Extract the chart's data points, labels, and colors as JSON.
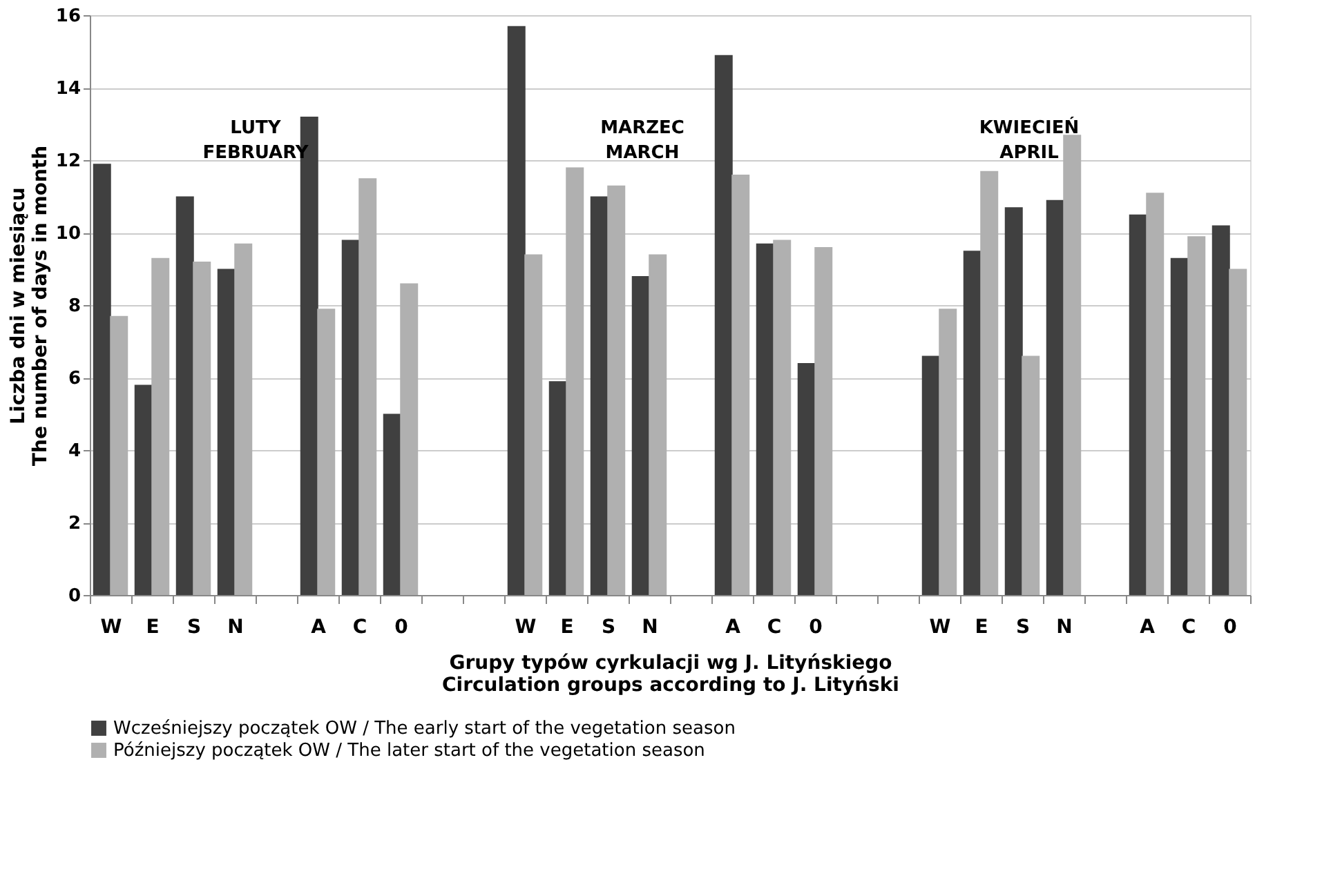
{
  "chart_data": {
    "type": "bar",
    "xlabel": "Grupy typów cyrkulacji wg J. Lityńskiego\nCirculation groups according to J. Lityński",
    "ylabel": "Liczba dni w miesiącu\nThe number of days in month",
    "categories": [
      "W",
      "E",
      "S",
      "N",
      null,
      "A",
      "C",
      "0",
      null,
      null,
      "W",
      "E",
      "S",
      "N",
      null,
      "A",
      "C",
      "0",
      null,
      null,
      "W",
      "E",
      "S",
      "N",
      null,
      "A",
      "C",
      "0"
    ],
    "series": [
      {
        "name": "Wcześniejszy początek OW / The early start of the vegetation season",
        "color": "#404040",
        "values": [
          11.9,
          5.8,
          11.0,
          9.0,
          null,
          13.2,
          9.8,
          5.0,
          null,
          null,
          15.7,
          5.9,
          11.0,
          8.8,
          null,
          14.9,
          9.7,
          6.4,
          null,
          null,
          6.6,
          9.5,
          10.7,
          10.9,
          null,
          10.5,
          9.3,
          10.2
        ]
      },
      {
        "name": "Późniejszy początek OW / The later start of the vegetation season",
        "color": "#b0b0b0",
        "values": [
          7.7,
          9.3,
          9.2,
          9.7,
          null,
          7.9,
          11.5,
          8.6,
          null,
          null,
          9.4,
          11.8,
          11.3,
          9.4,
          null,
          11.6,
          9.8,
          9.6,
          null,
          null,
          7.9,
          11.7,
          6.6,
          12.7,
          null,
          11.1,
          9.9,
          9.0
        ]
      }
    ],
    "ylim": [
      0,
      16
    ],
    "yticks": [
      0,
      2,
      4,
      6,
      8,
      10,
      12,
      14,
      16
    ],
    "grid": "y",
    "legend": "bottom",
    "annotations": [
      "LUTY\nFEBRUARY",
      "MARZEC\nMARCH",
      "KWIECIEŃ\nAPRIL"
    ]
  }
}
